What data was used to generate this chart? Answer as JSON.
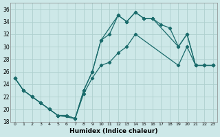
{
  "xlabel": "Humidex (Indice chaleur)",
  "background_color": "#cde8e8",
  "grid_color": "#aed0ce",
  "line_color": "#1a6b6b",
  "xlim": [
    -0.5,
    23.5
  ],
  "ylim": [
    18,
    37
  ],
  "xticks": [
    0,
    1,
    2,
    3,
    4,
    5,
    6,
    7,
    8,
    9,
    10,
    11,
    12,
    13,
    14,
    15,
    16,
    17,
    18,
    19,
    20,
    21,
    22,
    23
  ],
  "yticks": [
    18,
    20,
    22,
    24,
    26,
    28,
    30,
    32,
    34,
    36
  ],
  "line1_x": [
    0,
    1,
    2,
    3,
    4,
    5,
    6,
    7,
    8,
    9,
    10,
    11,
    12,
    13,
    14,
    15,
    16,
    17,
    18,
    19,
    20,
    21,
    22,
    23
  ],
  "line1_y": [
    25,
    23,
    22,
    21,
    20,
    19,
    19,
    18.5,
    23,
    26,
    31,
    32,
    35,
    34,
    35.5,
    34.5,
    34.5,
    33.5,
    33,
    30,
    32,
    27,
    27,
    27
  ],
  "line2_x": [
    0,
    1,
    2,
    3,
    4,
    5,
    7,
    8,
    9,
    10,
    12,
    13,
    14,
    15,
    16,
    19,
    20,
    21,
    22,
    23
  ],
  "line2_y": [
    25,
    23,
    22,
    21,
    20,
    19,
    18.5,
    23,
    26,
    31,
    35,
    34,
    35.5,
    34.5,
    34.5,
    30,
    32,
    27,
    27,
    27
  ],
  "line3_x": [
    0,
    1,
    2,
    3,
    4,
    5,
    6,
    7,
    8,
    9,
    10,
    11,
    12,
    13,
    14,
    19,
    20,
    21,
    22,
    23
  ],
  "line3_y": [
    25,
    23,
    22,
    21,
    20,
    19,
    19,
    18.5,
    22.5,
    25,
    27,
    27.5,
    29,
    30,
    32,
    27,
    30,
    27,
    27,
    27
  ]
}
